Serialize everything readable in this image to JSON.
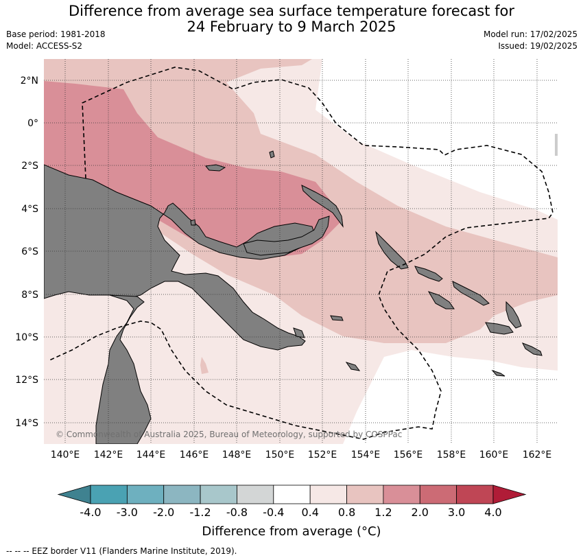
{
  "title_line1": "Difference from average sea surface temperature forecast for",
  "title_line2": "24 February to 9 March 2025",
  "base_period": "Base period: 1981-2018",
  "model": "Model: ACCESS-S2",
  "model_run": "Model run: 17/02/2025",
  "issued": "Issued: 19/02/2025",
  "copyright": "© Commonwealth of Australia 2025, Bureau of Meteorology, supported by COSPPac",
  "lat_labels": [
    "2°N",
    "0°",
    "2°S",
    "4°S",
    "6°S",
    "8°S",
    "10°S",
    "12°S",
    "14°S"
  ],
  "lon_labels": [
    "140°E",
    "142°E",
    "144°E",
    "146°E",
    "148°E",
    "150°E",
    "152°E",
    "154°E",
    "156°E",
    "158°E",
    "160°E",
    "162°E"
  ],
  "colorbar": {
    "title": "Difference from average (°C)",
    "ticks": [
      "-4.0",
      "-3.0",
      "-2.0",
      "-1.2",
      "-0.8",
      "-0.4",
      "0.4",
      "0.8",
      "1.2",
      "2.0",
      "3.0",
      "4.0"
    ],
    "colors": [
      "#3f8290",
      "#4aa2b3",
      "#6eb0bf",
      "#8cb6c1",
      "#a8c7cb",
      "#d3d6d6",
      "#ffffff",
      "#f6e8e6",
      "#e8c4c0",
      "#d98f98",
      "#cc6b75",
      "#bf4655",
      "#b01c37"
    ]
  },
  "legend_footer": "--  --  -- EEZ border V11 (Flanders Marine Institute, 2019).",
  "land_color": "#808080"
}
